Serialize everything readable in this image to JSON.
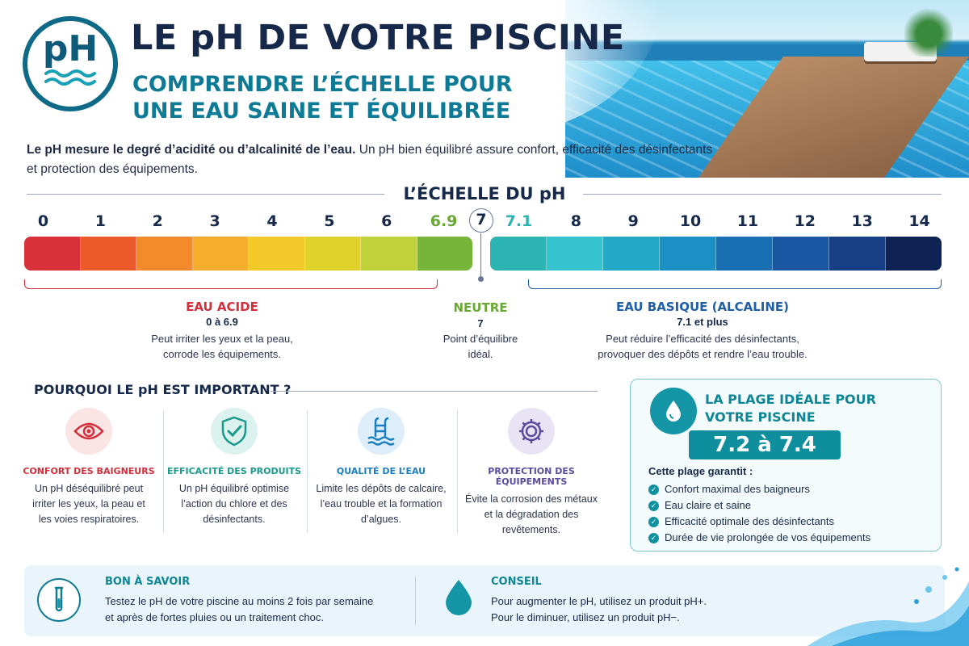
{
  "header": {
    "logo_text": "pH",
    "title": "LE pH DE VOTRE PISCINE",
    "subtitle_line1": "COMPRENDRE L’ÉCHELLE POUR",
    "subtitle_line2": "UNE EAU SAINE ET ÉQUILIBRÉE"
  },
  "intro": {
    "bold": "Le pH mesure le degré d’acidité ou d’alcalinité de l’eau.",
    "text": " Un pH bien équilibré assure confort, efficacité des désinfectants et protection des équipements."
  },
  "scale": {
    "title": "L’ÉCHELLE DU pH",
    "left_numbers": [
      "0",
      "1",
      "2",
      "3",
      "4",
      "5",
      "6",
      "6.9"
    ],
    "neutral_number": "7",
    "right_numbers": [
      "7.1",
      "8",
      "9",
      "10",
      "11",
      "12",
      "13",
      "14"
    ],
    "acid_colors": [
      "#d9313a",
      "#ec5a2c",
      "#f38b2c",
      "#f6ad2c",
      "#f2c928",
      "#e0d22b",
      "#bfd23a",
      "#77b53a"
    ],
    "base_colors": [
      "#2bb4b2",
      "#35c4cf",
      "#22a9c8",
      "#1c8fc5",
      "#1a6fb3",
      "#1a57a2",
      "#173f86",
      "#0f2254"
    ]
  },
  "zones": {
    "acid": {
      "title": "EAU ACIDE",
      "range": "0 à 6.9",
      "desc1": "Peut irriter les yeux et la peau,",
      "desc2": "corrode les équipements.",
      "color": "#d42e3b"
    },
    "neutral": {
      "title": "NEUTRE",
      "range": "7",
      "desc1": "Point d’équilibre",
      "desc2": "idéal.",
      "color": "#6aa834"
    },
    "base": {
      "title": "EAU BASIQUE (ALCALINE)",
      "range": "7.1 et plus",
      "desc1": "Peut réduire l’efficacité des désinfectants,",
      "desc2": "provoquer des dépôts et rendre l’eau trouble.",
      "color": "#1f5ea8"
    }
  },
  "why": {
    "title": "POURQUOI LE pH EST IMPORTANT ?",
    "cards": [
      {
        "icon": "eye-icon",
        "title": "CONFORT DES BAIGNEURS",
        "color": "#d42e3b",
        "bg": "#fbe4e4",
        "desc1": "Un pH déséquilibré peut",
        "desc2": "irriter les yeux, la peau et",
        "desc3": "les voies respiratoires."
      },
      {
        "icon": "shield-check-icon",
        "title": "EFFICACITÉ DES PRODUITS",
        "color": "#1a9a8c",
        "bg": "#dcf2ef",
        "desc1": "Un pH équilibré optimise",
        "desc2": "l’action du chlore et des",
        "desc3": "désinfectants."
      },
      {
        "icon": "pool-ladder-icon",
        "title": "QUALITÉ DE L’EAU",
        "color": "#1a7fc0",
        "bg": "#ddeefa",
        "desc1": "Limite les dépôts de calcaire,",
        "desc2": "l’eau trouble et la formation",
        "desc3": "d’algues."
      },
      {
        "icon": "gear-icon",
        "title": "PROTECTION DES ÉQUIPEMENTS",
        "color": "#5a4aa0",
        "bg": "#e8e4f4",
        "desc1": "Évite la corrosion des métaux",
        "desc2": "et la dégradation des",
        "desc3": "revêtements."
      }
    ]
  },
  "ideal": {
    "title_line1": "LA PLAGE IDÉALE POUR",
    "title_line2": "VOTRE PISCINE",
    "range": "7.2 à 7.4",
    "guarantee": "Cette plage garantit :",
    "items": [
      "Confort maximal des baigneurs",
      "Eau claire et saine",
      "Efficacité optimale des désinfectants",
      "Durée de vie prolongée de vos équipements"
    ]
  },
  "tips": {
    "good_title": "BON À SAVOIR",
    "good_line1": "Testez le pH de votre piscine au moins 2 fois par semaine",
    "good_line2": "et après de fortes pluies ou un traitement choc.",
    "advice_title": "CONSEIL",
    "advice_line1": "Pour augmenter le pH, utilisez un produit pH+.",
    "advice_line2": "Pour le diminuer, utilisez un produit pH−."
  }
}
